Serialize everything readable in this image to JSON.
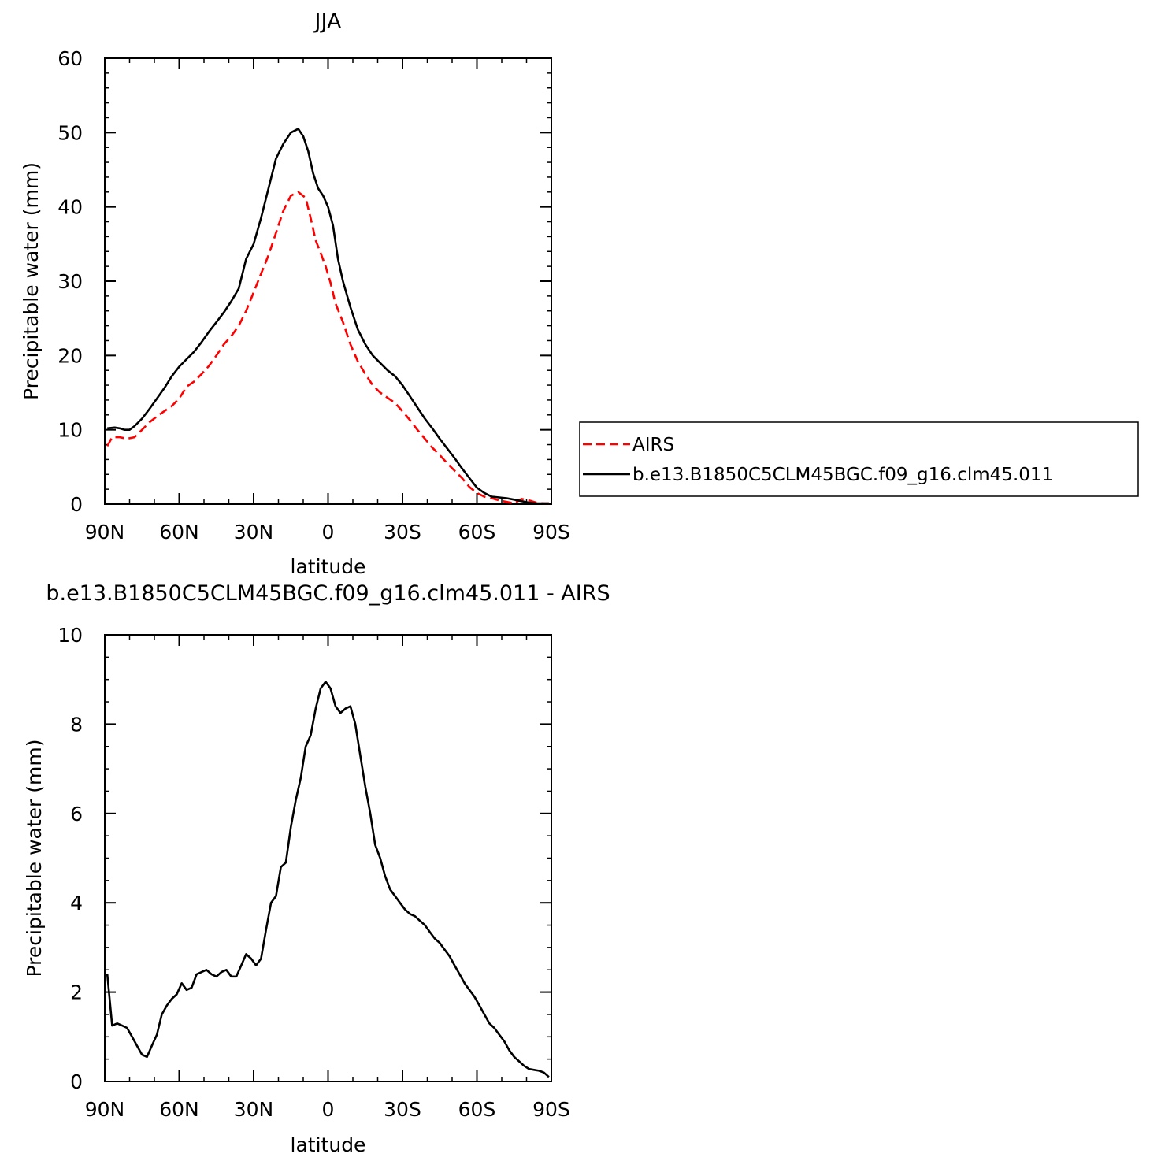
{
  "chart_data": [
    {
      "type": "line",
      "title": "JJA",
      "xlabel": "latitude",
      "ylabel": "Precipitable water (mm)",
      "xlim": [
        -90,
        90
      ],
      "ylim": [
        0,
        60
      ],
      "xticks": [
        -90,
        -60,
        -30,
        0,
        30,
        60,
        90
      ],
      "xtick_labels": [
        "90N",
        "60N",
        "30N",
        "0",
        "30S",
        "60S",
        "90S"
      ],
      "yticks": [
        0,
        10,
        20,
        30,
        40,
        50,
        60
      ],
      "ytick_labels": [
        "0",
        "10",
        "20",
        "30",
        "40",
        "50",
        "60"
      ],
      "x_note_units": "degrees latitude, north to south",
      "legend_position": "right",
      "series": [
        {
          "name": "AIRS",
          "color": "#ff0000",
          "dash": "dashed",
          "x": [
            -89,
            -87,
            -84,
            -81,
            -78,
            -75,
            -72,
            -69,
            -66,
            -63,
            -60,
            -57,
            -54,
            -51,
            -48,
            -45,
            -42,
            -39,
            -36,
            -33,
            -30,
            -27,
            -24,
            -21,
            -18,
            -15,
            -12,
            -9,
            -7,
            -5,
            -3,
            -1,
            1,
            3,
            6,
            9,
            12,
            15,
            18,
            21,
            24,
            27,
            30,
            33,
            36,
            39,
            42,
            45,
            48,
            51,
            54,
            57,
            60,
            63,
            66,
            69,
            72,
            75,
            78,
            81,
            84,
            87,
            89
          ],
          "y": [
            7.8,
            9.0,
            9.0,
            8.8,
            9.0,
            10.0,
            11.0,
            11.8,
            12.5,
            13.2,
            14.2,
            15.8,
            16.5,
            17.5,
            18.6,
            20.0,
            21.5,
            22.6,
            24.0,
            26.0,
            28.5,
            31.0,
            33.5,
            36.5,
            39.5,
            41.5,
            42.0,
            41.2,
            38.5,
            35.5,
            33.8,
            32.0,
            29.8,
            27.0,
            24.5,
            21.5,
            19.2,
            17.5,
            16.0,
            15.0,
            14.3,
            13.6,
            12.5,
            11.3,
            10.0,
            8.8,
            7.6,
            6.6,
            5.5,
            4.5,
            3.5,
            2.3,
            1.5,
            1.0,
            0.8,
            0.5,
            0.3,
            0.1,
            0.7,
            0.5,
            0.2,
            0.1,
            0.1
          ]
        },
        {
          "name": "b.e13.B1850C5CLM45BGC.f09_g16.clm45.011",
          "color": "#000000",
          "dash": "solid",
          "x": [
            -89,
            -86,
            -84,
            -82,
            -80,
            -78,
            -75,
            -72,
            -69,
            -66,
            -63,
            -60,
            -57,
            -54,
            -51,
            -48,
            -45,
            -42,
            -39,
            -36,
            -33,
            -30,
            -27,
            -24,
            -21,
            -18,
            -15,
            -12,
            -10,
            -8,
            -6,
            -4,
            -2,
            0,
            2,
            4,
            6,
            9,
            12,
            15,
            18,
            21,
            24,
            27,
            30,
            33,
            36,
            39,
            42,
            45,
            48,
            51,
            54,
            57,
            60,
            63,
            66,
            69,
            72,
            75,
            78,
            81,
            84,
            87,
            89
          ],
          "y": [
            10.2,
            10.3,
            10.2,
            10.0,
            10.0,
            10.5,
            11.5,
            12.8,
            14.2,
            15.6,
            17.2,
            18.5,
            19.5,
            20.5,
            21.8,
            23.2,
            24.5,
            25.8,
            27.3,
            29.0,
            33.0,
            35.0,
            38.5,
            42.5,
            46.5,
            48.5,
            50.0,
            50.5,
            49.5,
            47.5,
            44.5,
            42.5,
            41.5,
            40.0,
            37.5,
            33.0,
            30.0,
            26.5,
            23.5,
            21.5,
            20.0,
            19.0,
            18.0,
            17.2,
            16.0,
            14.5,
            13.0,
            11.5,
            10.2,
            8.8,
            7.5,
            6.2,
            4.8,
            3.5,
            2.2,
            1.5,
            1.0,
            0.9,
            0.8,
            0.6,
            0.4,
            0.2,
            0.1,
            0.1,
            0.1
          ]
        }
      ]
    },
    {
      "type": "line",
      "title": "b.e13.B1850C5CLM45BGC.f09_g16.clm45.011 - AIRS",
      "xlabel": "latitude",
      "ylabel": "Precipitable water (mm)",
      "xlim": [
        -90,
        90
      ],
      "ylim": [
        0,
        10
      ],
      "xticks": [
        -90,
        -60,
        -30,
        0,
        30,
        60,
        90
      ],
      "xtick_labels": [
        "90N",
        "60N",
        "30N",
        "0",
        "30S",
        "60S",
        "90S"
      ],
      "yticks": [
        0,
        2,
        4,
        6,
        8,
        10
      ],
      "ytick_labels": [
        "0",
        "2",
        "4",
        "6",
        "8",
        "10"
      ],
      "series": [
        {
          "color": "#000000",
          "dash": "solid",
          "x": [
            -89,
            -87,
            -85,
            -83,
            -81,
            -79,
            -77,
            -75,
            -73,
            -71,
            -69,
            -67,
            -65,
            -63,
            -61,
            -59,
            -57,
            -55,
            -53,
            -51,
            -49,
            -47,
            -45,
            -43,
            -41,
            -39,
            -37,
            -35,
            -33,
            -31,
            -29,
            -27,
            -25,
            -23,
            -21,
            -19,
            -17,
            -15,
            -13,
            -11,
            -9,
            -7,
            -5,
            -3,
            -1,
            1,
            3,
            5,
            7,
            9,
            11,
            13,
            15,
            17,
            19,
            21,
            23,
            25,
            27,
            29,
            31,
            33,
            35,
            37,
            39,
            41,
            43,
            45,
            47,
            49,
            51,
            53,
            55,
            57,
            59,
            61,
            63,
            65,
            67,
            69,
            71,
            73,
            75,
            77,
            79,
            81,
            83,
            85,
            87,
            89
          ],
          "y": [
            2.4,
            1.25,
            1.3,
            1.25,
            1.2,
            1.0,
            0.8,
            0.6,
            0.55,
            0.8,
            1.05,
            1.5,
            1.7,
            1.85,
            1.95,
            2.2,
            2.05,
            2.1,
            2.4,
            2.45,
            2.5,
            2.4,
            2.35,
            2.45,
            2.5,
            2.35,
            2.35,
            2.6,
            2.85,
            2.75,
            2.6,
            2.75,
            3.4,
            4.0,
            4.15,
            4.8,
            4.9,
            5.7,
            6.3,
            6.8,
            7.5,
            7.75,
            8.35,
            8.8,
            8.95,
            8.8,
            8.4,
            8.25,
            8.35,
            8.4,
            8.0,
            7.3,
            6.6,
            6.0,
            5.3,
            5.0,
            4.6,
            4.3,
            4.15,
            4.0,
            3.85,
            3.75,
            3.7,
            3.6,
            3.5,
            3.35,
            3.2,
            3.1,
            2.95,
            2.8,
            2.6,
            2.4,
            2.2,
            2.05,
            1.9,
            1.7,
            1.5,
            1.3,
            1.2,
            1.05,
            0.9,
            0.7,
            0.55,
            0.45,
            0.35,
            0.28,
            0.26,
            0.24,
            0.2,
            0.1
          ]
        }
      ]
    }
  ]
}
